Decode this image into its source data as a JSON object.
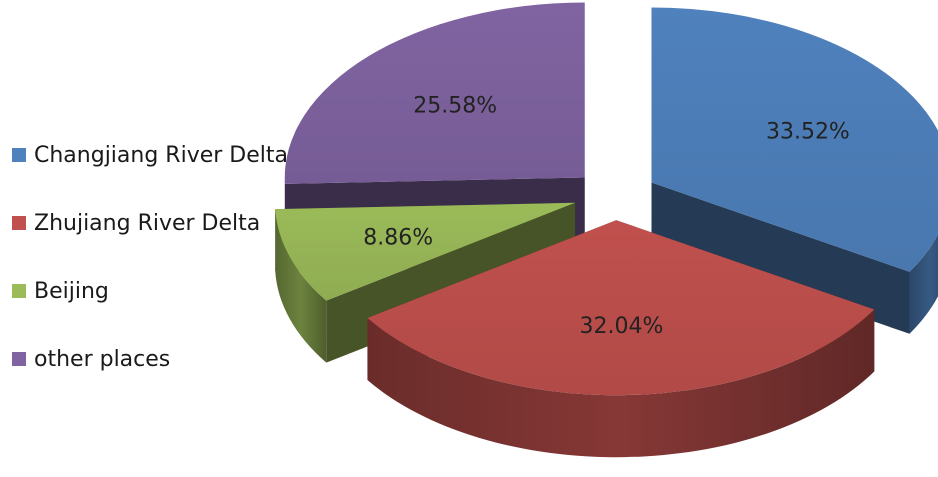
{
  "chart_data": {
    "type": "pie",
    "style": "3d-exploded",
    "title": "",
    "legend_position": "left",
    "slices": [
      {
        "name": "Changjiang River Delta",
        "value": 33.52,
        "label": "33.52%",
        "color": "#4F81BD"
      },
      {
        "name": "Zhujiang River Delta",
        "value": 32.04,
        "label": "32.04%",
        "color": "#C0504D"
      },
      {
        "name": "Beijing",
        "value": 8.86,
        "label": "8.86%",
        "color": "#9BBB59"
      },
      {
        "name": "other places",
        "value": 25.58,
        "label": "25.58%",
        "color": "#8064A2"
      }
    ]
  }
}
